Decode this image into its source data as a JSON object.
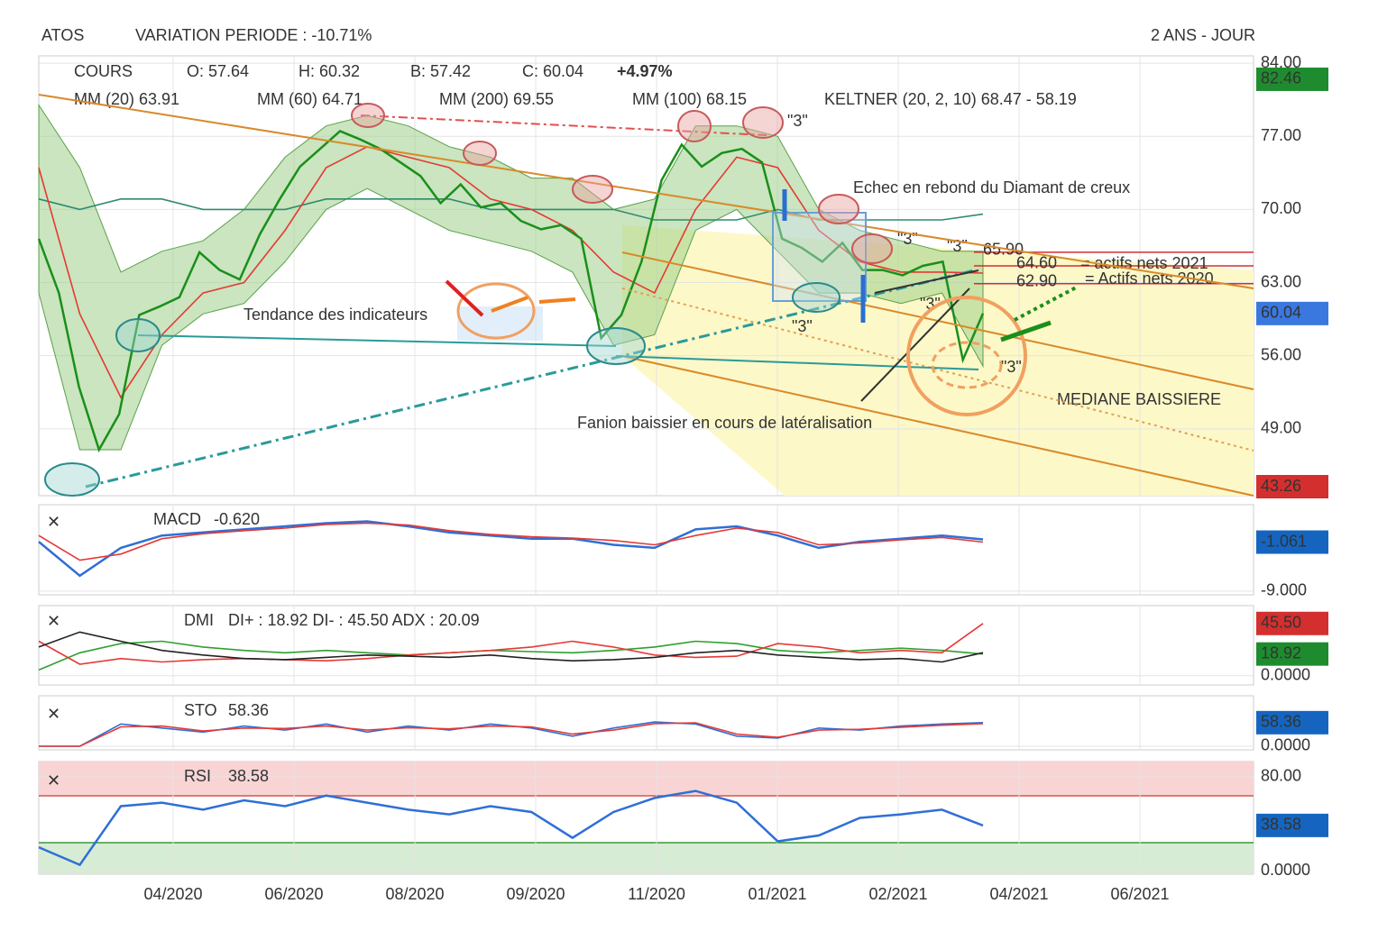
{
  "header": {
    "ticker": "ATOS",
    "variation": "VARIATION PERIODE : -10.71%",
    "period": "2 ANS - JOUR"
  },
  "x_axis": {
    "labels": [
      "04/2020",
      "06/2020",
      "08/2020",
      "09/2020",
      "11/2020",
      "01/2021",
      "02/2021",
      "04/2021",
      "06/2021"
    ]
  },
  "chart_data": [
    {
      "type": "line",
      "title": "COURS",
      "quote": [
        "O: 57.64",
        "H: 60.32",
        "B: 57.42",
        "C: 60.04",
        "+4.97%"
      ],
      "legend": [
        {
          "text": "MM (20) 63.91",
          "color": "#e53935"
        },
        {
          "text": "MM (60) 64.71",
          "color": "#f0a030"
        },
        {
          "text": "MM (200) 69.55",
          "color": "#2e8b6e"
        },
        {
          "text": "MM (100) 68.15",
          "color": "#5bc8e0"
        },
        {
          "text": "KELTNER (20, 2, 10) 68.47 - 58.19",
          "color": "#1f9a2a"
        }
      ],
      "ylim": [
        42.6,
        84.7
      ],
      "yticks": [
        {
          "value": 84,
          "label": "84.00"
        },
        {
          "value": 77,
          "label": "77.00"
        },
        {
          "value": 70,
          "label": "70.00"
        },
        {
          "value": 63,
          "label": "63.00"
        },
        {
          "value": 56,
          "label": "56.00"
        },
        {
          "value": 49,
          "label": "49.00"
        }
      ],
      "badges": [
        {
          "value": 82.46,
          "label": "82.46",
          "color": "#1e8c2e"
        },
        {
          "value": 60.04,
          "label": "60.04",
          "color": "#3a78e0"
        },
        {
          "value": 43.26,
          "label": "43.26",
          "color": "#d32f2f"
        }
      ],
      "band": {
        "upper": [
          80,
          74,
          64,
          66,
          67,
          70,
          75,
          78,
          79,
          78,
          76,
          75,
          73,
          73,
          70,
          71,
          78,
          78,
          77,
          70,
          68,
          67,
          66,
          66
        ],
        "lower": [
          62,
          47,
          47,
          57,
          60,
          61,
          65,
          70,
          72,
          70,
          68,
          67,
          66,
          64,
          57,
          58,
          68,
          70,
          66,
          62,
          62,
          61,
          62,
          55
        ],
        "color": "#9fd08a"
      },
      "series": [
        {
          "name": "MM (200)",
          "color": "#2e8b6e",
          "values": [
            71,
            70,
            71,
            71,
            70,
            70,
            70,
            71,
            71,
            71,
            71,
            70,
            70,
            70,
            70,
            69,
            69,
            69,
            70,
            69,
            69,
            69,
            69,
            69.55
          ]
        },
        {
          "name": "MM (20)",
          "color": "#e53935",
          "values": [
            74,
            60,
            52,
            58,
            62,
            63,
            68,
            74,
            76,
            75,
            74,
            71,
            70,
            68,
            64,
            62,
            70,
            75,
            74,
            68,
            65,
            64,
            64,
            63.91
          ]
        },
        {
          "name": "COURS",
          "color": "#1a8f1a",
          "values": [
            67.2,
            62,
            53,
            47,
            50.4,
            59.9,
            60.7,
            61.6,
            65.9,
            64.2,
            63.3,
            67.6,
            71,
            74.1,
            75.8,
            77.5,
            76.7,
            75.8,
            74.5,
            73.2,
            70.6,
            72.4,
            70.2,
            70.6,
            68.9,
            68.1,
            68.5,
            67.2,
            57.7,
            59.9,
            65,
            72.8,
            76.2,
            74.1,
            75.4,
            75.8,
            74.5,
            67.2,
            66.3,
            65,
            66.8,
            64.2,
            64.2,
            63.7,
            64.6,
            65,
            55.6,
            60.04
          ]
        }
      ],
      "levels": [
        {
          "value": 65.9,
          "label": "65.90"
        },
        {
          "value": 64.6,
          "label": "64.60"
        },
        {
          "value": 62.9,
          "label": "62.90"
        }
      ],
      "annotations": [
        "Echec en rebond du Diamant de creux",
        "Tendance des indicateurs",
        "Fanion baissier en cours de latéralisation",
        "MEDIANE BAISSIERE",
        "\"3\"",
        "\"3\"",
        "\"3\"",
        "\"3\"",
        "\"3\"",
        "\"3\"",
        "= actifs nets 2021",
        "= Actifs nets 2020"
      ]
    },
    {
      "type": "line",
      "title": "MACD",
      "readout": "-0.620",
      "ylim": [
        -9.6,
        5
      ],
      "yticks": [
        {
          "value": -9,
          "label": "-9.000"
        }
      ],
      "badges": [
        {
          "value": -1.061,
          "label": "-1.061",
          "color": "#1565c0"
        }
      ],
      "series": [
        {
          "name": "MACD",
          "color": "#2f6fd6",
          "values": [
            -1,
            -6.5,
            -2,
            0,
            0.5,
            1,
            1.5,
            2,
            2.3,
            1.5,
            0.5,
            0,
            -0.5,
            -0.5,
            -1.5,
            -2,
            1,
            1.5,
            0,
            -2,
            -1,
            -0.5,
            0,
            -0.62
          ]
        },
        {
          "name": "Signal",
          "color": "#e53935",
          "values": [
            0,
            -4,
            -3,
            -0.5,
            0.3,
            0.8,
            1.2,
            1.8,
            2,
            1.7,
            0.8,
            0.2,
            -0.2,
            -0.4,
            -0.8,
            -1.5,
            0,
            1.2,
            0.5,
            -1.5,
            -1.2,
            -0.7,
            -0.3,
            -1.061
          ]
        }
      ]
    },
    {
      "type": "line",
      "title": "DMI",
      "readout": "DI+ : 18.92 DI- : 45.50 ADX : 20.09",
      "ylim": [
        -8,
        61
      ],
      "yticks": [
        {
          "value": 0,
          "label": "0.0000"
        }
      ],
      "badges": [
        {
          "value": 45.5,
          "label": "45.50",
          "color": "#d32f2f"
        },
        {
          "value": 18.92,
          "label": "18.92",
          "color": "#1e8c2e"
        }
      ],
      "series": [
        {
          "name": "DI+",
          "color": "#2ea02e",
          "values": [
            5,
            20,
            28,
            30,
            25,
            22,
            20,
            22,
            20,
            18,
            20,
            22,
            21,
            20,
            22,
            25,
            30,
            28,
            22,
            20,
            22,
            24,
            22,
            18.92
          ]
        },
        {
          "name": "DI-",
          "color": "#e53935",
          "values": [
            30,
            10,
            15,
            12,
            14,
            15,
            14,
            13,
            15,
            18,
            20,
            22,
            25,
            30,
            25,
            18,
            16,
            17,
            28,
            25,
            20,
            22,
            20,
            45.5
          ]
        },
        {
          "name": "ADX",
          "color": "#222222",
          "values": [
            25,
            38,
            30,
            22,
            18,
            15,
            14,
            16,
            18,
            17,
            16,
            18,
            15,
            13,
            14,
            16,
            20,
            22,
            18,
            16,
            14,
            15,
            12,
            20.09
          ]
        }
      ]
    },
    {
      "type": "line",
      "title": "STO",
      "readout": "58.36",
      "ylim": [
        -9,
        125
      ],
      "yticks": [
        {
          "value": 0,
          "label": "0.0000"
        }
      ],
      "badges": [
        {
          "value": 58.36,
          "label": "58.36",
          "color": "#1565c0"
        }
      ],
      "series": [
        {
          "name": "%K",
          "color": "#2f6fd6",
          "values": [
            0,
            0,
            55,
            45,
            35,
            50,
            40,
            55,
            35,
            50,
            40,
            55,
            45,
            25,
            45,
            60,
            55,
            25,
            20,
            45,
            40,
            50,
            55,
            58.36
          ]
        },
        {
          "name": "%D",
          "color": "#e53935",
          "values": [
            0,
            0,
            48,
            50,
            38,
            45,
            44,
            50,
            40,
            46,
            43,
            50,
            48,
            30,
            40,
            56,
            58,
            30,
            22,
            40,
            42,
            47,
            52,
            56
          ]
        }
      ]
    },
    {
      "type": "line",
      "title": "RSI",
      "readout": "38.58",
      "ylim": [
        -3,
        93
      ],
      "yticks": [
        {
          "value": 80,
          "label": "80.00"
        },
        {
          "value": 0,
          "label": "0.0000"
        }
      ],
      "badges": [
        {
          "value": 38.58,
          "label": "38.58",
          "color": "#1565c0"
        }
      ],
      "series": [
        {
          "name": "RSI",
          "color": "#2f6fd6",
          "values": [
            20,
            5,
            55,
            58,
            52,
            60,
            55,
            64,
            58,
            52,
            48,
            55,
            50,
            28,
            50,
            62,
            68,
            58,
            25,
            30,
            45,
            48,
            52,
            38.58
          ]
        }
      ]
    }
  ]
}
